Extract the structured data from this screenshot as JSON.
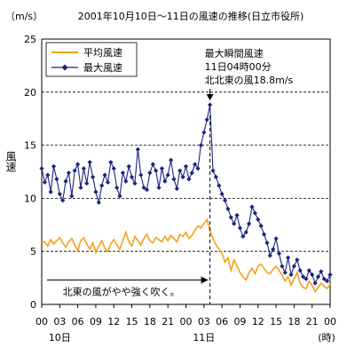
{
  "chart_data": {
    "type": "line",
    "title": "2001年10月10日～11日の風速の推移(日立市役所)",
    "unit_label": "（m/s）",
    "ylabel": "風速",
    "xunit": "(時)",
    "ylim": [
      0,
      25
    ],
    "yticks": [
      0,
      5,
      10,
      15,
      20,
      25
    ],
    "xrange": [
      0,
      48
    ],
    "xticks": [
      "00",
      "03",
      "06",
      "09",
      "12",
      "15",
      "18",
      "21",
      "00",
      "03",
      "06",
      "09",
      "12",
      "15",
      "18",
      "21",
      "00"
    ],
    "day_labels": [
      {
        "text": "10日",
        "at_hour": 3
      },
      {
        "text": "11日",
        "at_hour": 27
      }
    ],
    "gridlines": true,
    "legend": {
      "position": "top-left",
      "entries": [
        "平均風速",
        "最大風速"
      ]
    },
    "annotations": {
      "peak": {
        "lines": [
          "最大瞬間風速",
          "11日04時00分",
          "北北東の風18.8m/s"
        ],
        "hour": 28,
        "value": 18.8
      },
      "note": {
        "text": "北東の風がやや強く吹く。",
        "hour_from": 0,
        "hour_to": 28,
        "value": 2.3
      },
      "marker_hour": 28
    },
    "series": [
      {
        "name": "平均風速",
        "color": "#f5a01a",
        "marker": "none",
        "x": [
          0,
          0.5,
          1,
          1.5,
          2,
          2.5,
          3,
          3.5,
          4,
          4.5,
          5,
          5.5,
          6,
          6.5,
          7,
          7.5,
          8,
          8.5,
          9,
          9.5,
          10,
          10.5,
          11,
          11.5,
          12,
          12.5,
          13,
          13.5,
          14,
          14.5,
          15,
          15.5,
          16,
          16.5,
          17,
          17.5,
          18,
          18.5,
          19,
          19.5,
          20,
          20.5,
          21,
          21.5,
          22,
          22.5,
          23,
          23.5,
          24,
          24.5,
          25,
          25.5,
          26,
          26.5,
          27,
          27.5,
          28,
          28.5,
          29,
          29.5,
          30,
          30.5,
          31,
          31.5,
          32,
          32.5,
          33,
          33.5,
          34,
          34.5,
          35,
          35.5,
          36,
          36.5,
          37,
          37.5,
          38,
          38.5,
          39,
          39.5,
          40,
          40.5,
          41,
          41.5,
          42,
          42.5,
          43,
          43.5,
          44,
          44.5,
          45,
          45.5,
          46,
          46.5,
          47,
          47.5,
          48
        ],
        "values": [
          5.8,
          5.9,
          5.5,
          6.1,
          5.7,
          6.0,
          6.3,
          5.8,
          5.4,
          5.9,
          6.2,
          5.6,
          5.1,
          6.0,
          6.3,
          5.7,
          5.2,
          5.8,
          4.9,
          5.5,
          6.0,
          5.3,
          5.0,
          5.7,
          6.1,
          5.6,
          5.2,
          6.0,
          6.8,
          5.9,
          5.5,
          6.4,
          6.0,
          5.6,
          6.2,
          6.6,
          6.0,
          5.8,
          6.3,
          6.1,
          5.9,
          6.4,
          6.0,
          6.5,
          6.2,
          5.9,
          6.6,
          6.4,
          6.8,
          6.2,
          6.5,
          7.0,
          7.4,
          7.2,
          7.6,
          8.0,
          7.0,
          6.2,
          5.6,
          5.2,
          4.8,
          4.0,
          4.4,
          3.2,
          4.2,
          3.6,
          3.0,
          2.6,
          2.3,
          3.0,
          3.4,
          2.9,
          3.6,
          3.8,
          3.4,
          3.0,
          2.9,
          3.3,
          3.6,
          3.2,
          2.8,
          2.2,
          2.6,
          1.8,
          2.4,
          3.0,
          2.0,
          1.6,
          1.5,
          2.2,
          1.8,
          1.2,
          1.6,
          2.0,
          1.7,
          1.5,
          1.9
        ]
      },
      {
        "name": "最大風速",
        "color": "#1a237e",
        "marker": "diamond",
        "x": [
          0,
          0.5,
          1,
          1.5,
          2,
          2.5,
          3,
          3.5,
          4,
          4.5,
          5,
          5.5,
          6,
          6.5,
          7,
          7.5,
          8,
          8.5,
          9,
          9.5,
          10,
          10.5,
          11,
          11.5,
          12,
          12.5,
          13,
          13.5,
          14,
          14.5,
          15,
          15.5,
          16,
          16.5,
          17,
          17.5,
          18,
          18.5,
          19,
          19.5,
          20,
          20.5,
          21,
          21.5,
          22,
          22.5,
          23,
          23.5,
          24,
          24.5,
          25,
          25.5,
          26,
          26.5,
          27,
          27.5,
          28,
          28.5,
          29,
          29.5,
          30,
          30.5,
          31,
          31.5,
          32,
          32.5,
          33,
          33.5,
          34,
          34.5,
          35,
          35.5,
          36,
          36.5,
          37,
          37.5,
          38,
          38.5,
          39,
          39.5,
          40,
          40.5,
          41,
          41.5,
          42,
          42.5,
          43,
          43.5,
          44,
          44.5,
          45,
          45.5,
          46,
          46.5,
          47,
          47.5,
          48
        ],
        "values": [
          12.8,
          11.5,
          12.2,
          10.6,
          13.0,
          11.8,
          10.4,
          9.8,
          11.6,
          12.4,
          10.2,
          12.6,
          13.2,
          11.0,
          12.8,
          11.4,
          13.4,
          12.0,
          10.6,
          9.6,
          11.2,
          12.2,
          11.5,
          13.4,
          12.8,
          11.0,
          10.2,
          12.4,
          11.6,
          13.0,
          12.0,
          11.4,
          14.6,
          12.2,
          11.0,
          10.8,
          12.4,
          13.2,
          12.6,
          11.0,
          12.8,
          11.6,
          12.2,
          13.6,
          11.8,
          10.9,
          12.6,
          12.0,
          13.0,
          11.8,
          12.4,
          13.2,
          12.8,
          15.0,
          16.2,
          17.4,
          18.8,
          12.6,
          12.0,
          11.2,
          10.4,
          9.8,
          9.0,
          8.2,
          7.6,
          8.4,
          7.2,
          6.4,
          6.8,
          7.6,
          9.2,
          8.6,
          8.0,
          7.4,
          6.6,
          5.8,
          4.6,
          5.2,
          6.2,
          4.8,
          3.6,
          3.0,
          4.4,
          2.8,
          3.6,
          4.2,
          3.2,
          2.6,
          2.4,
          3.2,
          2.8,
          2.0,
          2.6,
          3.1,
          2.4,
          2.2,
          2.8
        ]
      }
    ]
  }
}
